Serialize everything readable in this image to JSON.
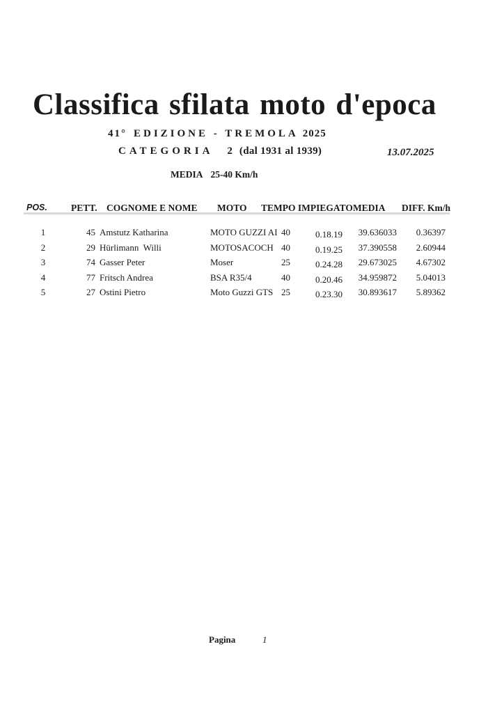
{
  "header": {
    "title": "Classifica sfilata moto d'epoca",
    "edition_prefix": "41°",
    "edition_label": "EDIZIONE - TREMOLA",
    "edition_year": "2025",
    "category_label": "CATEGORIA",
    "category_number": "2",
    "category_range": "(dal 1931 al 1939)",
    "date": "13.07.2025",
    "media_label": "MEDIA",
    "media_value": "25-40 Km/h"
  },
  "table": {
    "headers": {
      "pos": "POS.",
      "pett": "PETT.",
      "name": "COGNOME E NOME",
      "moto": "MOTO",
      "tempo": "TEMPO IMPIEGATO",
      "media": "MEDIA",
      "diff": "DIFF. Km/h"
    },
    "rows": [
      {
        "pos": "1",
        "pett": "45",
        "name": "Amstutz Katharina",
        "moto": "MOTO GUZZI AI",
        "speed": "40",
        "tempo": "0.18.19",
        "media": "39.636033",
        "diff": "0.36397"
      },
      {
        "pos": "2",
        "pett": "29",
        "name": "Hürlimann  Willi",
        "moto": "MOTOSACOCH",
        "speed": "40",
        "tempo": "0.19.25",
        "media": "37.390558",
        "diff": "2.60944"
      },
      {
        "pos": "3",
        "pett": "74",
        "name": "Gasser Peter",
        "moto": "Moser",
        "speed": "25",
        "tempo": "0.24.28",
        "media": "29.673025",
        "diff": "4.67302"
      },
      {
        "pos": "4",
        "pett": "77",
        "name": "Fritsch Andrea",
        "moto": "BSA R35/4",
        "speed": "40",
        "tempo": "0.20.46",
        "media": "34.959872",
        "diff": "5.04013"
      },
      {
        "pos": "5",
        "pett": "27",
        "name": "Ostini Pietro",
        "moto": "Moto Guzzi GTS",
        "speed": "25",
        "tempo": "0.23.30",
        "media": "30.893617",
        "diff": "5.89362"
      }
    ]
  },
  "footer": {
    "page_label": "Pagina",
    "page_number": "1"
  }
}
